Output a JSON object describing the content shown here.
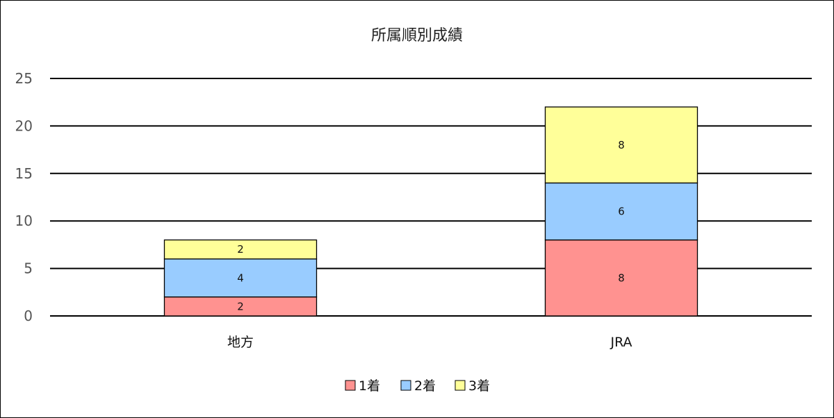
{
  "chart_data": {
    "type": "bar",
    "stacked": true,
    "title": "所属順別成績",
    "categories": [
      "地方",
      "JRA"
    ],
    "series": [
      {
        "name": "1着",
        "values": [
          2,
          8
        ],
        "color": "#ff9290"
      },
      {
        "name": "2着",
        "values": [
          4,
          6
        ],
        "color": "#99ccff"
      },
      {
        "name": "3着",
        "values": [
          2,
          8
        ],
        "color": "#ffff99"
      }
    ],
    "ylim": [
      0,
      25
    ],
    "yticks": [
      0,
      5,
      10,
      15,
      20,
      25
    ],
    "grid": true,
    "legend_position": "bottom"
  }
}
